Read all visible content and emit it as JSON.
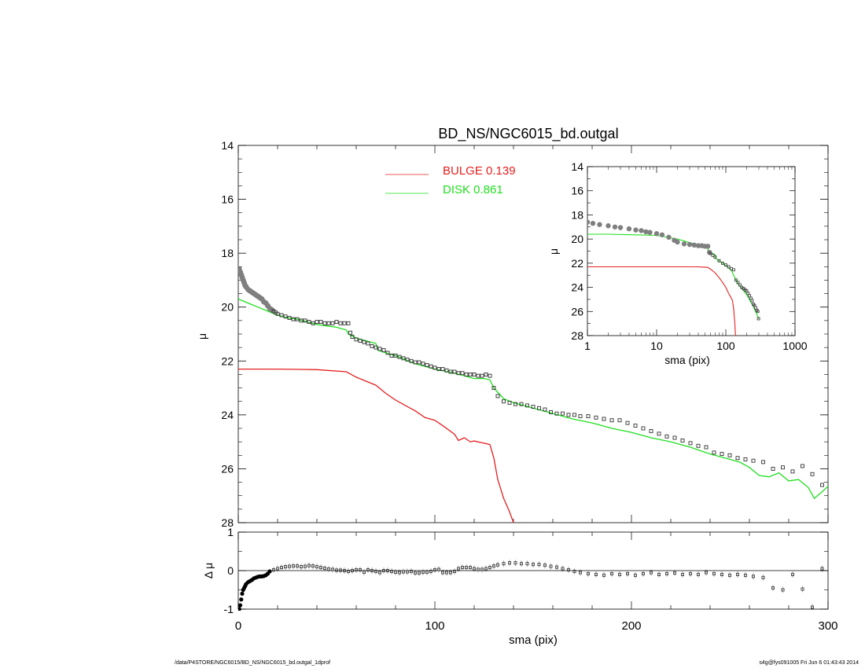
{
  "title": "BD_NS/NGC6015_bd.outgal",
  "footer_left": "/data/P4STORE/NGC6015/BD_NS/NGC6015_bd.outgal_1dprof",
  "footer_right": "s4g@fys091005  Fri Jun  6 01:43:43 2014",
  "colors": {
    "bulge": "#e32020",
    "disk": "#1ee01e",
    "data": "#7f7f7f",
    "axis": "#000000"
  },
  "chart_data": [
    {
      "id": "main",
      "type": "line",
      "xlabel": "",
      "ylabel": "μ",
      "xlim": [
        0,
        300
      ],
      "ylim": [
        28,
        14
      ],
      "yticks": [
        14,
        16,
        18,
        20,
        22,
        24,
        26,
        28
      ],
      "legend": {
        "placement": "top-center"
      },
      "series": [
        {
          "name": "BULGE  0.139",
          "color": "#e32020",
          "x": [
            0,
            20,
            40,
            55,
            60,
            65,
            70,
            75,
            80,
            85,
            90,
            95,
            100,
            105,
            110,
            112,
            115,
            118,
            120,
            125,
            128,
            130,
            132,
            135,
            138,
            140
          ],
          "y": [
            22.3,
            22.3,
            22.32,
            22.4,
            22.6,
            22.75,
            22.9,
            23.2,
            23.45,
            23.65,
            23.85,
            24.1,
            24.2,
            24.45,
            24.72,
            24.95,
            24.85,
            25.0,
            24.97,
            25.05,
            25.1,
            25.6,
            26.4,
            27.1,
            27.6,
            28.0
          ]
        },
        {
          "name": "DISK  0.861",
          "color": "#1ee01e",
          "x": [
            0,
            5,
            10,
            15,
            20,
            25,
            30,
            35,
            40,
            45,
            50,
            55,
            56,
            60,
            65,
            70,
            71,
            75,
            80,
            90,
            100,
            110,
            120,
            125,
            128,
            130,
            135,
            140,
            150,
            160,
            170,
            180,
            190,
            200,
            210,
            220,
            230,
            240,
            250,
            255,
            260,
            265,
            270,
            275,
            280,
            285,
            290,
            293,
            297,
            300
          ],
          "y": [
            19.7,
            19.85,
            20.0,
            20.15,
            20.3,
            20.4,
            20.45,
            20.55,
            20.65,
            20.7,
            20.75,
            20.85,
            21.0,
            21.15,
            21.25,
            21.35,
            21.6,
            21.7,
            21.8,
            22.1,
            22.3,
            22.45,
            22.65,
            22.65,
            22.7,
            23.0,
            23.4,
            23.55,
            23.75,
            23.95,
            24.15,
            24.3,
            24.5,
            24.65,
            24.85,
            25.0,
            25.2,
            25.45,
            25.65,
            25.75,
            25.95,
            26.25,
            26.3,
            26.15,
            26.45,
            26.4,
            26.7,
            27.1,
            26.85,
            26.65
          ]
        },
        {
          "name": "",
          "color": "#7f7f7f",
          "style": "markers",
          "x": [
            0.5,
            1,
            1.5,
            2,
            2.5,
            3,
            3.5,
            4,
            5,
            6,
            7,
            8,
            9,
            10,
            11,
            12,
            13,
            14,
            15,
            16,
            17,
            18,
            19,
            20,
            22,
            24,
            26,
            28,
            30,
            32,
            34,
            36,
            38,
            40,
            42,
            44,
            46,
            48,
            50,
            52,
            54,
            56,
            57,
            58,
            60,
            62,
            64,
            66,
            68,
            70,
            72,
            74,
            76,
            78,
            80,
            82,
            84,
            86,
            88,
            90,
            92,
            94,
            96,
            98,
            100,
            102,
            104,
            106,
            108,
            110,
            112,
            114,
            116,
            118,
            120,
            122,
            124,
            126,
            128,
            130,
            132,
            135,
            138,
            141,
            144,
            147,
            150,
            153,
            156,
            159,
            162,
            165,
            168,
            171,
            174,
            178,
            182,
            186,
            190,
            194,
            198,
            202,
            206,
            210,
            214,
            218,
            222,
            226,
            230,
            234,
            238,
            242,
            246,
            250,
            254,
            258,
            262,
            267,
            272,
            277,
            282,
            287,
            292,
            297
          ],
          "y": [
            18.6,
            18.7,
            18.8,
            18.9,
            19.0,
            19.1,
            19.2,
            19.25,
            19.35,
            19.4,
            19.45,
            19.5,
            19.55,
            19.6,
            19.65,
            19.7,
            19.8,
            19.85,
            19.95,
            20.05,
            20.1,
            20.15,
            20.2,
            20.25,
            20.3,
            20.35,
            20.4,
            20.45,
            20.45,
            20.5,
            20.5,
            20.55,
            20.6,
            20.55,
            20.55,
            20.6,
            20.6,
            20.6,
            20.55,
            20.6,
            20.6,
            20.6,
            20.95,
            21.1,
            21.2,
            21.25,
            21.3,
            21.35,
            21.45,
            21.5,
            21.55,
            21.6,
            21.7,
            21.8,
            21.8,
            21.85,
            21.9,
            21.95,
            22.0,
            22.05,
            22.05,
            22.1,
            22.15,
            22.2,
            22.25,
            22.3,
            22.3,
            22.35,
            22.4,
            22.4,
            22.45,
            22.45,
            22.5,
            22.5,
            22.5,
            22.55,
            22.55,
            22.5,
            22.55,
            23.0,
            23.3,
            23.5,
            23.55,
            23.6,
            23.6,
            23.65,
            23.7,
            23.75,
            23.8,
            23.9,
            23.95,
            23.95,
            24.0,
            24.0,
            24.05,
            24.05,
            24.1,
            24.15,
            24.2,
            24.2,
            24.3,
            24.4,
            24.5,
            24.6,
            24.7,
            24.8,
            24.85,
            24.95,
            25.05,
            25.15,
            25.2,
            25.4,
            25.45,
            25.5,
            25.6,
            25.65,
            25.7,
            25.75,
            26.0,
            25.95,
            26.1,
            25.9,
            26.2,
            26.6
          ]
        }
      ]
    },
    {
      "id": "inset",
      "type": "line",
      "xlabel": "sma (pix)",
      "ylabel": "μ",
      "xscale": "log",
      "xlim": [
        1,
        1000
      ],
      "ylim": [
        28,
        14
      ],
      "xticks": [
        1,
        10,
        100,
        1000
      ],
      "yticks": [
        14,
        16,
        18,
        20,
        22,
        24,
        26,
        28
      ],
      "series": [
        {
          "name": "",
          "color": "#e32020",
          "x": [
            1,
            5,
            10,
            20,
            40,
            55,
            60,
            70,
            80,
            90,
            100,
            110,
            120,
            125,
            130,
            135,
            138
          ],
          "y": [
            22.3,
            22.3,
            22.3,
            22.3,
            22.3,
            22.35,
            22.5,
            22.8,
            23.2,
            23.6,
            24.0,
            24.5,
            24.9,
            25.1,
            25.8,
            27.0,
            28.0
          ]
        },
        {
          "name": "",
          "color": "#1ee01e",
          "x": [
            1,
            2,
            5,
            10,
            20,
            40,
            55,
            56,
            60,
            70,
            71,
            80,
            100,
            120,
            130,
            150,
            200,
            250,
            300
          ],
          "y": [
            19.6,
            19.6,
            19.65,
            19.7,
            20.0,
            20.5,
            20.8,
            21.0,
            21.1,
            21.3,
            21.6,
            21.8,
            22.2,
            22.6,
            23.0,
            23.7,
            24.6,
            25.6,
            26.6
          ]
        },
        {
          "name": "",
          "color": "#7f7f7f",
          "style": "markers",
          "x": [
            1,
            1.2,
            1.5,
            2,
            2.5,
            3,
            4,
            5,
            6,
            7,
            8,
            10,
            12,
            15,
            18,
            20,
            25,
            30,
            35,
            40,
            45,
            50,
            55,
            58,
            60,
            65,
            70,
            80,
            90,
            100,
            110,
            120,
            130,
            140,
            150,
            160,
            170,
            180,
            190,
            200,
            210,
            220,
            230,
            240,
            250,
            260,
            270,
            280,
            290,
            297
          ],
          "y": [
            18.6,
            18.7,
            18.8,
            18.9,
            19.0,
            19.05,
            19.15,
            19.25,
            19.3,
            19.4,
            19.45,
            19.55,
            19.65,
            19.85,
            20.1,
            20.25,
            20.4,
            20.45,
            20.5,
            20.55,
            20.55,
            20.6,
            20.6,
            21.1,
            21.2,
            21.35,
            21.5,
            21.8,
            22.0,
            22.15,
            22.3,
            22.45,
            22.55,
            23.4,
            23.6,
            23.8,
            24.0,
            24.1,
            24.2,
            24.3,
            24.5,
            24.7,
            24.9,
            25.1,
            25.4,
            25.5,
            25.7,
            25.9,
            26.0,
            26.6
          ]
        }
      ]
    },
    {
      "id": "residual",
      "type": "scatter",
      "xlabel": "sma (pix)",
      "ylabel": "Δ μ",
      "xlim": [
        0,
        300
      ],
      "ylim": [
        -1,
        1
      ],
      "xticks": [
        0,
        100,
        200,
        300
      ],
      "yticks": [
        -1,
        0,
        1
      ],
      "series": [
        {
          "name": "",
          "color": "#000000",
          "x": [
            0.5,
            1,
            1.5,
            2,
            2.5,
            3,
            3.5,
            4,
            5,
            6,
            7,
            8,
            9,
            10,
            11,
            12,
            13,
            14,
            15,
            16,
            18,
            20,
            22,
            24,
            26,
            28,
            30,
            32,
            34,
            36,
            38,
            40,
            42,
            44,
            46,
            48,
            50,
            52,
            54,
            56,
            58,
            60,
            62,
            64,
            66,
            68,
            70,
            72,
            74,
            76,
            78,
            80,
            82,
            84,
            86,
            88,
            90,
            92,
            94,
            96,
            98,
            100,
            102,
            104,
            106,
            108,
            110,
            112,
            114,
            116,
            118,
            120,
            122,
            124,
            126,
            128,
            130,
            132,
            135,
            138,
            141,
            144,
            147,
            150,
            153,
            156,
            159,
            162,
            165,
            168,
            171,
            174,
            178,
            182,
            186,
            190,
            194,
            198,
            202,
            206,
            210,
            214,
            218,
            222,
            226,
            230,
            234,
            238,
            242,
            246,
            250,
            254,
            258,
            262,
            267,
            272,
            277,
            282,
            287,
            292,
            297
          ],
          "y": [
            -1.0,
            -0.9,
            -0.75,
            -0.6,
            -0.5,
            -0.45,
            -0.4,
            -0.35,
            -0.3,
            -0.27,
            -0.24,
            -0.2,
            -0.18,
            -0.16,
            -0.15,
            -0.15,
            -0.14,
            -0.12,
            -0.08,
            -0.02,
            0.02,
            0.05,
            0.08,
            0.1,
            0.11,
            0.12,
            0.12,
            0.1,
            0.11,
            0.13,
            0.12,
            0.1,
            0.08,
            0.06,
            0.04,
            0.03,
            0.01,
            0.01,
            0.0,
            -0.02,
            0.0,
            0.02,
            0.02,
            -0.04,
            0.02,
            0.0,
            -0.02,
            -0.05,
            0.0,
            0.0,
            -0.02,
            -0.04,
            -0.05,
            -0.03,
            -0.03,
            -0.02,
            -0.06,
            -0.06,
            -0.04,
            -0.04,
            -0.02,
            0.02,
            0.03,
            -0.05,
            -0.05,
            -0.05,
            -0.02,
            0.05,
            0.08,
            0.08,
            0.08,
            0.05,
            0.03,
            0.03,
            0.05,
            0.08,
            0.12,
            0.15,
            0.18,
            0.2,
            0.2,
            0.18,
            0.18,
            0.16,
            0.16,
            0.14,
            0.11,
            0.09,
            0.05,
            0.02,
            -0.02,
            -0.05,
            -0.08,
            -0.1,
            -0.12,
            -0.08,
            -0.1,
            -0.08,
            -0.12,
            -0.08,
            -0.05,
            -0.1,
            -0.08,
            -0.06,
            -0.1,
            -0.08,
            -0.1,
            -0.05,
            -0.08,
            -0.1,
            -0.12,
            -0.1,
            -0.12,
            -0.15,
            -0.18,
            -0.45,
            -0.5,
            -0.1,
            -0.48,
            -0.95,
            0.05
          ]
        }
      ]
    }
  ]
}
